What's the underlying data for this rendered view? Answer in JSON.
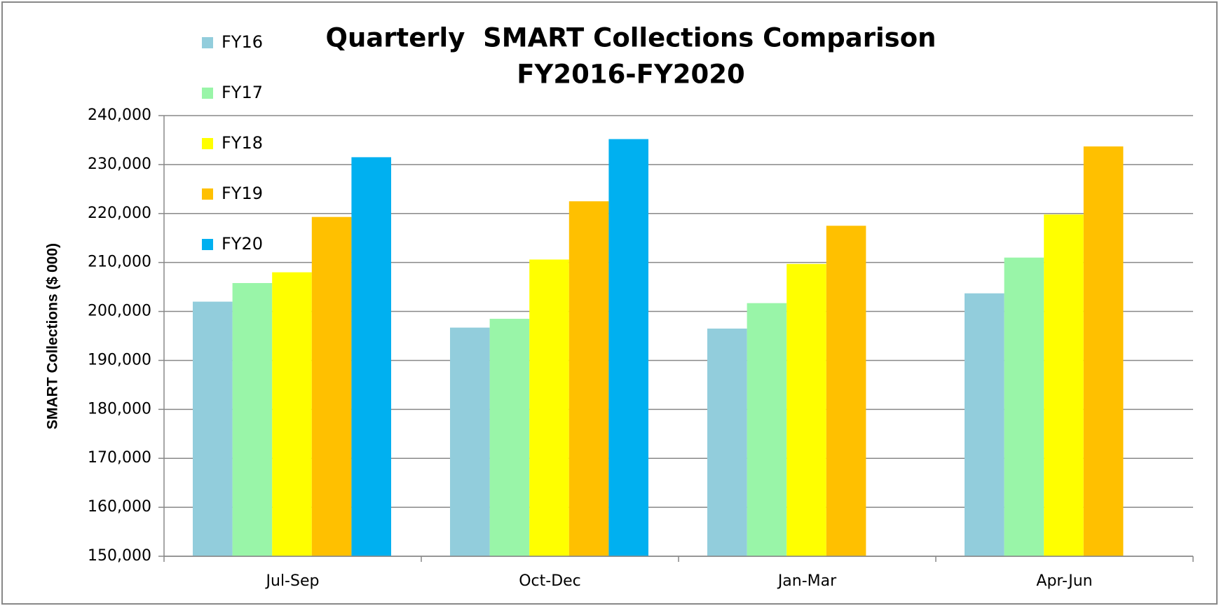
{
  "chart_data": {
    "type": "bar",
    "title": "Quarterly  SMART Collections Comparison",
    "subtitle": "FY2016-FY2020",
    "ylabel": "SMART Collections ($ 000)",
    "categories": [
      "Jul-Sep",
      "Oct-Dec",
      "Jan-Mar",
      "Apr-Jun"
    ],
    "series": [
      {
        "name": "FY16",
        "color": "#92cddc",
        "values": [
          202000,
          196700,
          196500,
          203700
        ]
      },
      {
        "name": "FY17",
        "color": "#99f5a8",
        "values": [
          205800,
          198500,
          201700,
          211000
        ]
      },
      {
        "name": "FY18",
        "color": "#ffff00",
        "values": [
          208000,
          210600,
          209700,
          219800
        ]
      },
      {
        "name": "FY19",
        "color": "#ffc000",
        "values": [
          219300,
          222500,
          217500,
          233700
        ]
      },
      {
        "name": "FY20",
        "color": "#00b0f0",
        "values": [
          231500,
          235200,
          null,
          null
        ]
      }
    ],
    "ylim": [
      150000,
      240000
    ],
    "yticks": [
      {
        "value": 150000,
        "label": "150,000"
      },
      {
        "value": 160000,
        "label": "160,000"
      },
      {
        "value": 170000,
        "label": "170,000"
      },
      {
        "value": 180000,
        "label": "180,000"
      },
      {
        "value": 190000,
        "label": "190,000"
      },
      {
        "value": 200000,
        "label": "200,000"
      },
      {
        "value": 210000,
        "label": "210,000"
      },
      {
        "value": 220000,
        "label": "220,000"
      },
      {
        "value": 230000,
        "label": "230,000"
      },
      {
        "value": 240000,
        "label": "240,000"
      }
    ],
    "grid": true,
    "legend": "top-left"
  }
}
